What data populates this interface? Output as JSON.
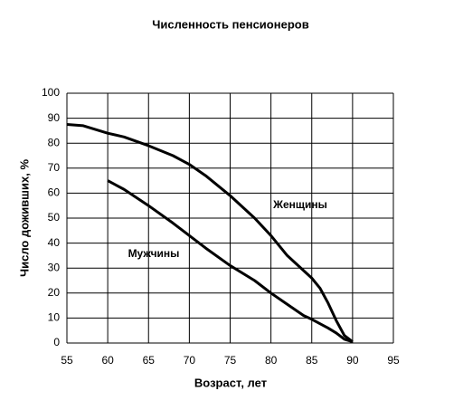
{
  "chart_data": {
    "type": "line",
    "title": "Численность пенсионеров",
    "x_label": "Возраст, лет",
    "y_label": "Число доживших, %",
    "series": [
      {
        "name": "Женщины",
        "color": "#000000",
        "x": [
          55,
          57,
          60,
          62,
          65,
          68,
          70,
          72,
          75,
          78,
          80,
          82,
          85,
          86,
          87,
          88,
          89,
          90
        ],
        "values": [
          87.5,
          87,
          84,
          82.5,
          79,
          75,
          71.5,
          67,
          59,
          50,
          43,
          35,
          26,
          22,
          16,
          9,
          3,
          0.5
        ]
      },
      {
        "name": "Мужчины",
        "color": "#000000",
        "x": [
          60,
          62,
          65,
          68,
          70,
          72,
          75,
          78,
          80,
          82,
          84,
          85,
          87,
          88,
          89,
          90
        ],
        "values": [
          65,
          61.5,
          55,
          48,
          43,
          38,
          31,
          25,
          20,
          15.5,
          11,
          9.5,
          6,
          4,
          1.5,
          0.5
        ]
      }
    ],
    "xlim": [
      55,
      95
    ],
    "xticks": [
      55,
      60,
      65,
      70,
      75,
      80,
      85,
      90,
      95
    ],
    "ylim": [
      0,
      100
    ],
    "yticks": [
      0,
      10,
      20,
      30,
      40,
      50,
      60,
      70,
      80,
      90,
      100
    ],
    "grid": true
  }
}
